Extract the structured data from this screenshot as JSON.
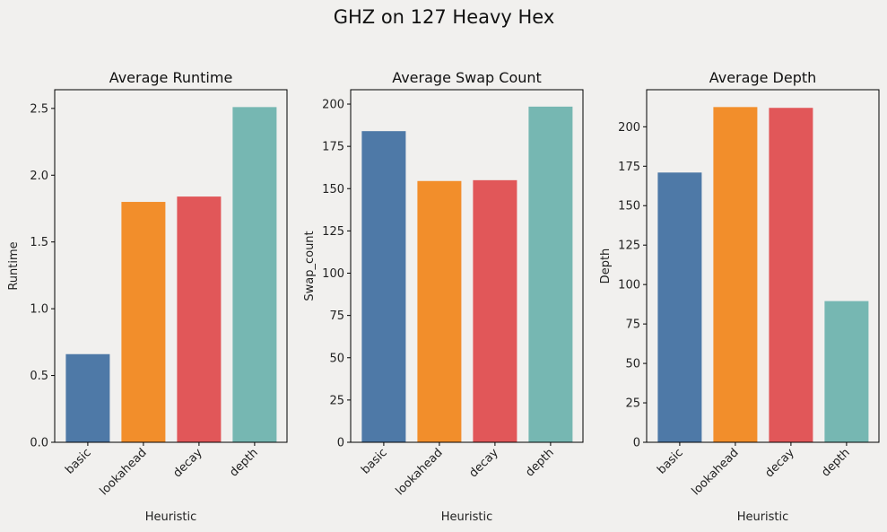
{
  "figure": {
    "suptitle": "GHZ on 127 Heavy Hex",
    "background": "#f1f0ee"
  },
  "chart_data": [
    {
      "type": "bar",
      "title": "Average Runtime",
      "xlabel": "Heuristic",
      "ylabel": "Runtime",
      "categories": [
        "basic",
        "lookahead",
        "decay",
        "depth"
      ],
      "values": [
        0.66,
        1.8,
        1.84,
        2.51
      ],
      "colors": [
        "#4e79a7",
        "#f28e2b",
        "#e15759",
        "#76b7b2"
      ],
      "ylim": [
        0,
        2.64
      ],
      "yticks": [
        0.0,
        0.5,
        1.0,
        1.5,
        2.0,
        2.5
      ],
      "ytick_labels": [
        "0.0",
        "0.5",
        "1.0",
        "1.5",
        "2.0",
        "2.5"
      ],
      "grid": false
    },
    {
      "type": "bar",
      "title": "Average Swap Count",
      "xlabel": "Heuristic",
      "ylabel": "Swap_count",
      "categories": [
        "basic",
        "lookahead",
        "decay",
        "depth"
      ],
      "values": [
        184,
        154.5,
        155,
        198.5
      ],
      "colors": [
        "#4e79a7",
        "#f28e2b",
        "#e15759",
        "#76b7b2"
      ],
      "ylim": [
        0,
        208.5
      ],
      "yticks": [
        0,
        25,
        50,
        75,
        100,
        125,
        150,
        175,
        200
      ],
      "ytick_labels": [
        "0",
        "25",
        "50",
        "75",
        "100",
        "125",
        "150",
        "175",
        "200"
      ],
      "grid": false
    },
    {
      "type": "bar",
      "title": "Average Depth",
      "xlabel": "Heuristic",
      "ylabel": "Depth",
      "categories": [
        "basic",
        "lookahead",
        "decay",
        "depth"
      ],
      "values": [
        171,
        212.5,
        212,
        89.5
      ],
      "colors": [
        "#4e79a7",
        "#f28e2b",
        "#e15759",
        "#76b7b2"
      ],
      "ylim": [
        0,
        223.5
      ],
      "yticks": [
        0,
        25,
        50,
        75,
        100,
        125,
        150,
        175,
        200
      ],
      "ytick_labels": [
        "0",
        "25",
        "50",
        "75",
        "100",
        "125",
        "150",
        "175",
        "200"
      ],
      "grid": false
    }
  ]
}
